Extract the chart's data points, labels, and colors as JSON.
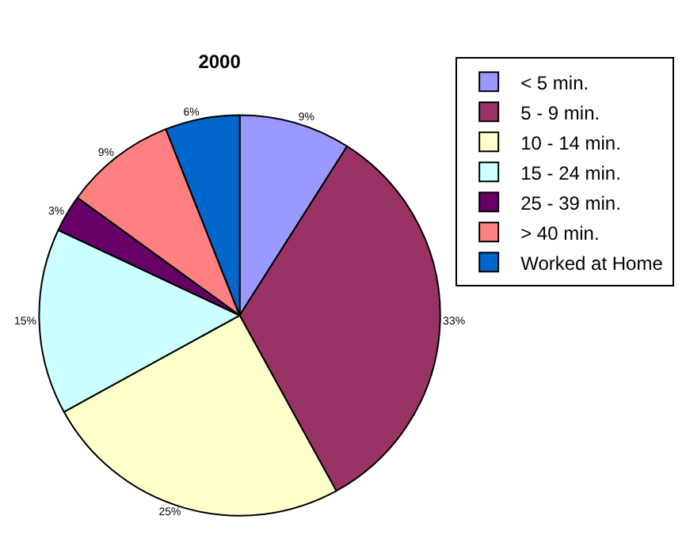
{
  "chart_data": {
    "type": "pie",
    "title": "2000",
    "categories": [
      "< 5 min.",
      "5 - 9 min.",
      "10 - 14 min.",
      "15 - 24 min.",
      "25 - 39 min.",
      "> 40 min.",
      "Worked at Home"
    ],
    "values": [
      9,
      33,
      25,
      15,
      3,
      9,
      6
    ],
    "value_labels": [
      "9%",
      "33%",
      "25%",
      "15%",
      "3%",
      "9%",
      "6%"
    ],
    "colors": [
      "#9999ff",
      "#993366",
      "#ffffcc",
      "#ccffff",
      "#660066",
      "#ff8080",
      "#0066cc"
    ],
    "legend": "right"
  }
}
